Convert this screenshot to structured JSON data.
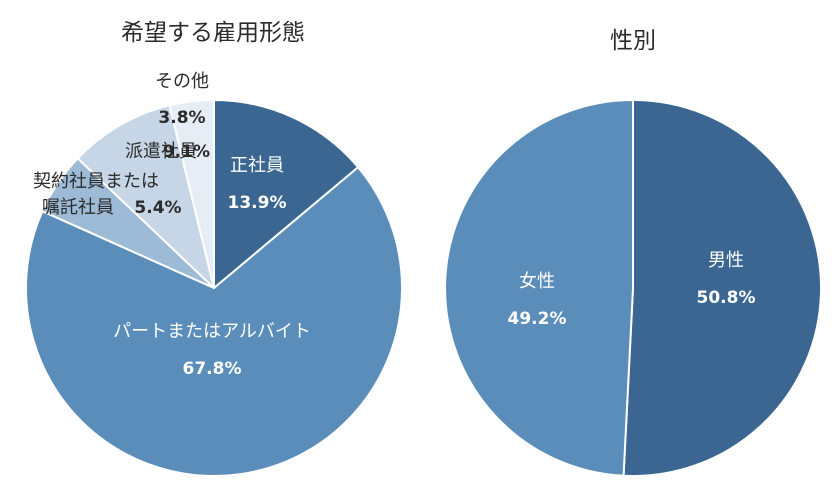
{
  "chart_data": [
    {
      "type": "pie",
      "title": "希望する雇用形態",
      "start_angle_deg": 0,
      "direction": "clockwise",
      "slices": [
        {
          "label": "正社員",
          "value": 13.9,
          "value_label": "13.9%",
          "color": "#3a6691",
          "text_color": "#ffffff"
        },
        {
          "label": "パートまたはアルバイト",
          "value": 67.8,
          "value_label": "67.8%",
          "color": "#5a8dba",
          "text_color": "#ffffff"
        },
        {
          "label": "契約社員または\n嘱託社員",
          "value": 5.4,
          "value_label": "5.4%",
          "color": "#9dbad6",
          "text_color": "#2b2b2b"
        },
        {
          "label": "派遣社員",
          "value": 9.1,
          "value_label": "9.1%",
          "color": "#c6d6e7",
          "text_color": "#2b2b2b"
        },
        {
          "label": "その他",
          "value": 3.8,
          "value_label": "3.8%",
          "color": "#e7edf5",
          "text_color": "#2b2b2b"
        }
      ]
    },
    {
      "type": "pie",
      "title": "性別",
      "start_angle_deg": 0,
      "direction": "clockwise",
      "slices": [
        {
          "label": "男性",
          "value": 50.8,
          "value_label": "50.8%",
          "color": "#3a6691",
          "text_color": "#ffffff"
        },
        {
          "label": "女性",
          "value": 49.2,
          "value_label": "49.2%",
          "color": "#5a8dba",
          "text_color": "#ffffff"
        }
      ]
    }
  ]
}
